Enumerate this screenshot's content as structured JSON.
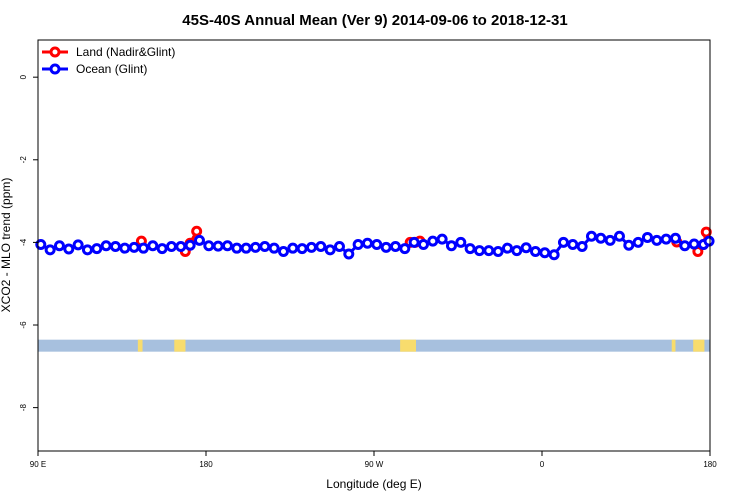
{
  "chart_data": {
    "type": "line",
    "title": "45S-40S Annual Mean (Ver 9)   2014-09-06 to 2018-12-31",
    "xlabel": "Longitude (deg E)",
    "ylabel": "XCO2 - MLO trend (ppm)",
    "xlim": [
      90,
      450
    ],
    "ylim": [
      -9.05,
      0.9
    ],
    "x_ticks": [
      {
        "value": 90,
        "label": "90 E"
      },
      {
        "value": 180,
        "label": "180"
      },
      {
        "value": 270,
        "label": "90 W"
      },
      {
        "value": 360,
        "label": "0"
      },
      {
        "value": 450,
        "label": "180"
      }
    ],
    "y_ticks": [
      {
        "value": 0,
        "label": "0"
      },
      {
        "value": -2,
        "label": "-2"
      },
      {
        "value": -4,
        "label": "-4"
      },
      {
        "value": -6,
        "label": "-6"
      },
      {
        "value": -8,
        "label": "-8"
      }
    ],
    "legend_position": "top-left",
    "grid": false,
    "series": [
      {
        "name": "Land (Nadir&Glint)",
        "color": "#ff0000",
        "segments": [
          {
            "x": [
              145.4
            ],
            "y": [
              -3.97
            ]
          },
          {
            "x": [
              168.9,
              171.5,
              175.0
            ],
            "y": [
              -4.22,
              -4.02,
              -3.73
            ]
          },
          {
            "x": [
              289.4,
              292.0,
              294.6
            ],
            "y": [
              -4.0,
              -4.0,
              -3.97
            ]
          },
          {
            "x": [
              432.2
            ],
            "y": [
              -3.99
            ]
          },
          {
            "x": [
              443.5,
              446.5,
              448.0
            ],
            "y": [
              -4.22,
              -4.05,
              -3.75
            ]
          }
        ]
      },
      {
        "name": "Ocean (Glint)",
        "color": "#0000ff",
        "x": [
          91.5,
          96.5,
          101.5,
          106.5,
          111.5,
          116.5,
          121.5,
          126.5,
          131.5,
          136.5,
          141.5,
          146.5,
          151.5,
          156.5,
          161.5,
          166.5,
          171.5,
          176.5,
          181.5,
          186.5,
          191.5,
          196.5,
          201.5,
          206.5,
          211.5,
          216.5,
          221.5,
          226.5,
          231.5,
          236.5,
          241.5,
          246.5,
          251.5,
          256.5,
          261.5,
          266.5,
          271.5,
          276.5,
          281.5,
          286.5,
          291.5,
          296.5,
          301.5,
          306.5,
          311.5,
          316.5,
          321.5,
          326.5,
          331.5,
          336.5,
          341.5,
          346.5,
          351.5,
          356.5,
          361.5,
          366.5,
          371.5,
          376.5,
          381.5,
          386.5,
          391.5,
          396.5,
          401.5,
          406.5,
          411.5,
          416.5,
          421.5,
          426.5,
          431.5,
          436.5,
          441.5,
          446.5,
          449.5
        ],
        "y": [
          -4.05,
          -4.18,
          -4.08,
          -4.16,
          -4.06,
          -4.18,
          -4.15,
          -4.08,
          -4.1,
          -4.14,
          -4.12,
          -4.14,
          -4.08,
          -4.15,
          -4.1,
          -4.1,
          -4.07,
          -3.95,
          -4.08,
          -4.09,
          -4.08,
          -4.14,
          -4.14,
          -4.12,
          -4.1,
          -4.14,
          -4.22,
          -4.14,
          -4.15,
          -4.12,
          -4.1,
          -4.18,
          -4.1,
          -4.28,
          -4.05,
          -4.02,
          -4.05,
          -4.12,
          -4.1,
          -4.15,
          -4.0,
          -4.05,
          -3.97,
          -3.92,
          -4.08,
          -4.0,
          -4.15,
          -4.2,
          -4.2,
          -4.22,
          -4.14,
          -4.2,
          -4.13,
          -4.22,
          -4.25,
          -4.3,
          -4.0,
          -4.05,
          -4.1,
          -3.85,
          -3.9,
          -3.95,
          -3.85,
          -4.07,
          -4.0,
          -3.88,
          -3.95,
          -3.92,
          -3.9,
          -4.08,
          -4.04,
          -4.05,
          -3.97
        ]
      }
    ],
    "land_mask": {
      "y": -6.5,
      "ocean_color": "#a7c0de",
      "land_color": "#f8dc6d",
      "land_ranges": [
        [
          143.5,
          146.0
        ],
        [
          163.0,
          169.0
        ],
        [
          284.0,
          292.5
        ],
        [
          429.5,
          431.5
        ],
        [
          441.0,
          447.0
        ]
      ]
    }
  }
}
